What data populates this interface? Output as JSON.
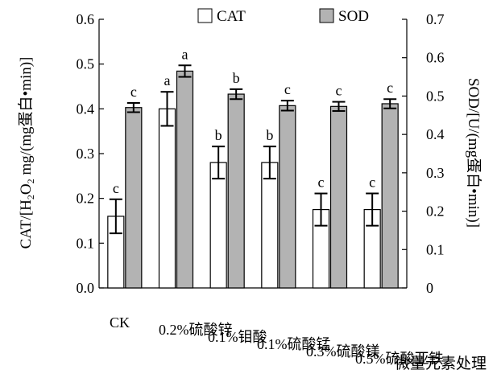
{
  "chart_data": {
    "type": "bar",
    "categories": [
      "CK",
      "0.2%硫酸锌",
      "0.1%钼酸",
      "0.1%硫酸锰",
      "0.3%硫酸镁",
      "0.5%硫酸亚铁"
    ],
    "xlabel": "微量元素处理",
    "ylabel_left_parts": [
      "CAT/[H",
      "2",
      "O",
      "2",
      " mg/(mg蛋白•min)]"
    ],
    "ylabel_right": "SOD/[U/(mg蛋白•min)]",
    "left_axis": {
      "ylim": [
        0,
        0.6
      ],
      "ticks": [
        "0.0",
        "0.1",
        "0.2",
        "0.3",
        "0.4",
        "0.5",
        "0.6"
      ]
    },
    "right_axis": {
      "ylim": [
        0,
        0.7
      ],
      "ticks": [
        "0",
        "0.1",
        "0.2",
        "0.3",
        "0.4",
        "0.5",
        "0.6",
        "0.7"
      ]
    },
    "series": [
      {
        "name": "CAT",
        "axis": "left",
        "color": "#ffffff",
        "values": [
          0.16,
          0.4,
          0.28,
          0.28,
          0.175,
          0.175
        ],
        "errors": [
          0.038,
          0.038,
          0.036,
          0.036,
          0.036,
          0.036
        ],
        "letters": [
          "c",
          "a",
          "b",
          "b",
          "c",
          "c"
        ]
      },
      {
        "name": "SOD",
        "axis": "right",
        "color": "#b3b3b3",
        "values": [
          0.47,
          0.565,
          0.505,
          0.475,
          0.473,
          0.48
        ],
        "errors": [
          0.012,
          0.015,
          0.013,
          0.013,
          0.012,
          0.012
        ],
        "letters": [
          "c",
          "a",
          "b",
          "c",
          "c",
          "c"
        ]
      }
    ],
    "legend": "top",
    "grid": false
  }
}
